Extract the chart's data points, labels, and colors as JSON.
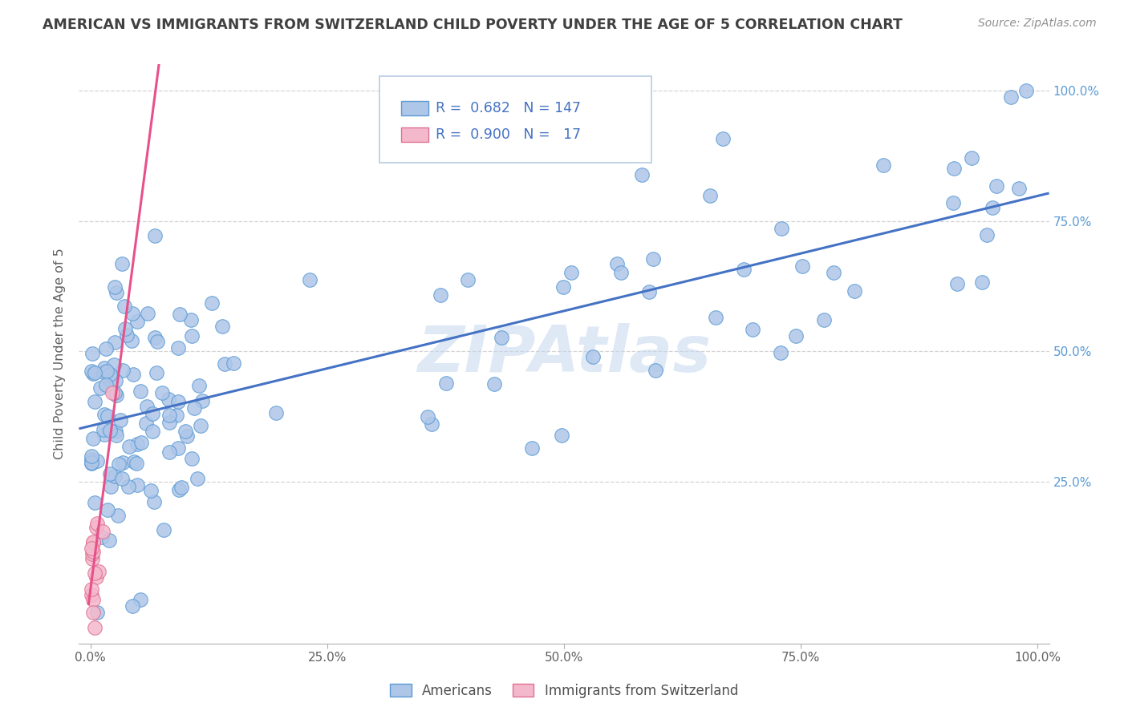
{
  "title": "AMERICAN VS IMMIGRANTS FROM SWITZERLAND CHILD POVERTY UNDER THE AGE OF 5 CORRELATION CHART",
  "source": "Source: ZipAtlas.com",
  "ylabel": "Child Poverty Under the Age of 5",
  "americans_R": "0.682",
  "americans_N": "147",
  "swiss_R": "0.900",
  "swiss_N": "17",
  "blue_line_color": "#4472c4",
  "pink_line_color": "#e8508a",
  "blue_dot_face": "#aec6e8",
  "blue_dot_edge": "#5b9bd5",
  "pink_dot_face": "#f4b8cc",
  "pink_dot_edge": "#e07090",
  "background_color": "#ffffff",
  "grid_color": "#d3d3d3",
  "title_color": "#404040",
  "source_color": "#909090",
  "right_tick_color": "#5b9bd5",
  "legend_label_color": "#4472c4"
}
